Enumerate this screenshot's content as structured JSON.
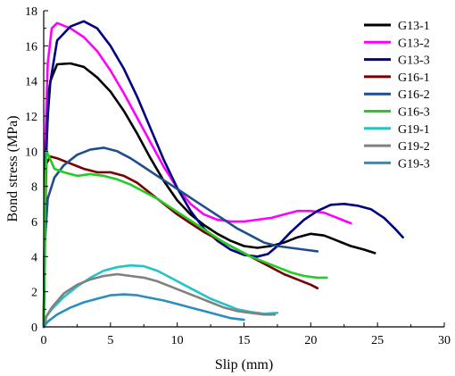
{
  "chart_data": {
    "type": "line",
    "title": "",
    "xlabel": "Slip (mm)",
    "ylabel": "Bond stress (MPa)",
    "xlim": [
      0,
      30
    ],
    "ylim": [
      0,
      18
    ],
    "xticks": [
      "0",
      "5",
      "10",
      "15",
      "20",
      "25",
      "30"
    ],
    "yticks": [
      "0",
      "2",
      "4",
      "6",
      "8",
      "10",
      "12",
      "14",
      "16",
      "18"
    ],
    "legend_position": "top-right",
    "grid": false,
    "series": [
      {
        "name": "G13-1",
        "color": "#000000",
        "points": [
          [
            0,
            0
          ],
          [
            0.1,
            8
          ],
          [
            0.3,
            12
          ],
          [
            0.5,
            14
          ],
          [
            1,
            14.95
          ],
          [
            2,
            15
          ],
          [
            3,
            14.8
          ],
          [
            4,
            14.2
          ],
          [
            5,
            13.4
          ],
          [
            6,
            12.3
          ],
          [
            7,
            11
          ],
          [
            8,
            9.6
          ],
          [
            9,
            8.3
          ],
          [
            10,
            7.2
          ],
          [
            11,
            6.4
          ],
          [
            12,
            5.8
          ],
          [
            13,
            5.3
          ],
          [
            14,
            4.9
          ],
          [
            15,
            4.6
          ],
          [
            16,
            4.5
          ],
          [
            17,
            4.6
          ],
          [
            18,
            4.8
          ],
          [
            19,
            5.1
          ],
          [
            20,
            5.3
          ],
          [
            21,
            5.2
          ],
          [
            22,
            4.9
          ],
          [
            23,
            4.6
          ],
          [
            24,
            4.4
          ],
          [
            24.8,
            4.2
          ]
        ]
      },
      {
        "name": "G13-2",
        "color": "#ff00ff",
        "points": [
          [
            0,
            0
          ],
          [
            0.1,
            10
          ],
          [
            0.3,
            15
          ],
          [
            0.6,
            17
          ],
          [
            1,
            17.3
          ],
          [
            2,
            17
          ],
          [
            3,
            16.5
          ],
          [
            4,
            15.7
          ],
          [
            5,
            14.6
          ],
          [
            6,
            13.3
          ],
          [
            7,
            11.9
          ],
          [
            8,
            10.5
          ],
          [
            9,
            9.1
          ],
          [
            10,
            7.9
          ],
          [
            11,
            7
          ],
          [
            12,
            6.4
          ],
          [
            13,
            6.1
          ],
          [
            14,
            6
          ],
          [
            15,
            6
          ],
          [
            16,
            6.1
          ],
          [
            17,
            6.2
          ],
          [
            18,
            6.4
          ],
          [
            19,
            6.6
          ],
          [
            20,
            6.6
          ],
          [
            21,
            6.5
          ],
          [
            22,
            6.2
          ],
          [
            23,
            5.9
          ]
        ]
      },
      {
        "name": "G13-3",
        "color": "#000080",
        "points": [
          [
            0,
            0
          ],
          [
            0.1,
            9
          ],
          [
            0.4,
            13.5
          ],
          [
            1,
            16.3
          ],
          [
            2,
            17.1
          ],
          [
            3,
            17.4
          ],
          [
            4,
            17
          ],
          [
            5,
            16
          ],
          [
            6,
            14.7
          ],
          [
            7,
            13.1
          ],
          [
            8,
            11.3
          ],
          [
            9,
            9.5
          ],
          [
            10,
            7.9
          ],
          [
            11,
            6.6
          ],
          [
            12,
            5.6
          ],
          [
            13,
            4.9
          ],
          [
            14,
            4.4
          ],
          [
            15,
            4.1
          ],
          [
            16,
            4
          ],
          [
            16.8,
            4.15
          ],
          [
            17.5,
            4.6
          ],
          [
            18.5,
            5.4
          ],
          [
            19.5,
            6.1
          ],
          [
            20.5,
            6.6
          ],
          [
            21.5,
            6.95
          ],
          [
            22.5,
            7
          ],
          [
            23.5,
            6.9
          ],
          [
            24.5,
            6.7
          ],
          [
            25.5,
            6.2
          ],
          [
            26.3,
            5.6
          ],
          [
            26.9,
            5.1
          ]
        ]
      },
      {
        "name": "G16-1",
        "color": "#7a0000",
        "points": [
          [
            0,
            0
          ],
          [
            0.1,
            6
          ],
          [
            0.2,
            9.3
          ],
          [
            0.5,
            9.7
          ],
          [
            1,
            9.6
          ],
          [
            2,
            9.3
          ],
          [
            3,
            9
          ],
          [
            4,
            8.8
          ],
          [
            5,
            8.8
          ],
          [
            6,
            8.6
          ],
          [
            7,
            8.2
          ],
          [
            8,
            7.6
          ],
          [
            9,
            7
          ],
          [
            10,
            6.4
          ],
          [
            11,
            5.9
          ],
          [
            12,
            5.4
          ],
          [
            13,
            5
          ],
          [
            14,
            4.6
          ],
          [
            15,
            4.2
          ],
          [
            16,
            3.8
          ],
          [
            17,
            3.4
          ],
          [
            18,
            3
          ],
          [
            19,
            2.7
          ],
          [
            20,
            2.4
          ],
          [
            20.5,
            2.2
          ]
        ]
      },
      {
        "name": "G16-2",
        "color": "#1f4e8c",
        "points": [
          [
            0,
            0
          ],
          [
            0.1,
            5
          ],
          [
            0.3,
            7.3
          ],
          [
            0.8,
            8.5
          ],
          [
            1.5,
            9.2
          ],
          [
            2.5,
            9.8
          ],
          [
            3.5,
            10.1
          ],
          [
            4.5,
            10.2
          ],
          [
            5.5,
            10
          ],
          [
            6.5,
            9.6
          ],
          [
            7.5,
            9.1
          ],
          [
            8.5,
            8.6
          ],
          [
            9.5,
            8.1
          ],
          [
            10.5,
            7.6
          ],
          [
            11.5,
            7.1
          ],
          [
            12.5,
            6.6
          ],
          [
            13.5,
            6.1
          ],
          [
            14.5,
            5.6
          ],
          [
            15.5,
            5.2
          ],
          [
            16.5,
            4.8
          ],
          [
            17.5,
            4.6
          ],
          [
            18.5,
            4.5
          ],
          [
            19.5,
            4.4
          ],
          [
            20.5,
            4.3
          ]
        ]
      },
      {
        "name": "G16-3",
        "color": "#22cc22",
        "points": [
          [
            0,
            0
          ],
          [
            0.1,
            7
          ],
          [
            0.2,
            10
          ],
          [
            0.4,
            9.7
          ],
          [
            0.8,
            9
          ],
          [
            1.5,
            8.8
          ],
          [
            2.5,
            8.6
          ],
          [
            3.5,
            8.7
          ],
          [
            4.5,
            8.6
          ],
          [
            5.5,
            8.4
          ],
          [
            6.5,
            8.1
          ],
          [
            7.5,
            7.7
          ],
          [
            8.5,
            7.3
          ],
          [
            9.5,
            6.8
          ],
          [
            10.5,
            6.3
          ],
          [
            11.5,
            5.8
          ],
          [
            12.5,
            5.3
          ],
          [
            13.5,
            4.8
          ],
          [
            14.5,
            4.4
          ],
          [
            15.5,
            4
          ],
          [
            16.5,
            3.7
          ],
          [
            17.5,
            3.4
          ],
          [
            18.5,
            3.1
          ],
          [
            19.5,
            2.9
          ],
          [
            20.5,
            2.8
          ],
          [
            21.2,
            2.8
          ]
        ]
      },
      {
        "name": "G19-1",
        "color": "#22c4c8",
        "points": [
          [
            0,
            0
          ],
          [
            0.2,
            0.6
          ],
          [
            0.6,
            1
          ],
          [
            1.5,
            1.7
          ],
          [
            2.5,
            2.3
          ],
          [
            3.5,
            2.8
          ],
          [
            4.5,
            3.2
          ],
          [
            5.5,
            3.4
          ],
          [
            6.5,
            3.5
          ],
          [
            7.5,
            3.45
          ],
          [
            8.5,
            3.2
          ],
          [
            9.5,
            2.8
          ],
          [
            10.5,
            2.4
          ],
          [
            11.5,
            2
          ],
          [
            12.5,
            1.6
          ],
          [
            13.5,
            1.3
          ],
          [
            14.5,
            1
          ],
          [
            15.5,
            0.85
          ],
          [
            16.5,
            0.75
          ],
          [
            17.5,
            0.8
          ]
        ]
      },
      {
        "name": "G19-2",
        "color": "#808080",
        "points": [
          [
            0,
            0
          ],
          [
            0.2,
            0.6
          ],
          [
            0.6,
            1.1
          ],
          [
            1.5,
            1.9
          ],
          [
            2.5,
            2.4
          ],
          [
            3.5,
            2.7
          ],
          [
            4.5,
            2.9
          ],
          [
            5.5,
            3
          ],
          [
            6.5,
            2.9
          ],
          [
            7.5,
            2.8
          ],
          [
            8.5,
            2.6
          ],
          [
            9.5,
            2.3
          ],
          [
            10.5,
            2
          ],
          [
            11.5,
            1.7
          ],
          [
            12.5,
            1.4
          ],
          [
            13.5,
            1.1
          ],
          [
            14.5,
            0.9
          ],
          [
            15.5,
            0.8
          ],
          [
            16.5,
            0.7
          ],
          [
            17.3,
            0.7
          ]
        ]
      },
      {
        "name": "G19-3",
        "color": "#2a8fc0",
        "points": [
          [
            0,
            0
          ],
          [
            0.3,
            0.3
          ],
          [
            1,
            0.7
          ],
          [
            2,
            1.1
          ],
          [
            3,
            1.4
          ],
          [
            4,
            1.6
          ],
          [
            5,
            1.8
          ],
          [
            6,
            1.85
          ],
          [
            7,
            1.8
          ],
          [
            8,
            1.65
          ],
          [
            9,
            1.5
          ],
          [
            10,
            1.3
          ],
          [
            11,
            1.1
          ],
          [
            12,
            0.9
          ],
          [
            13,
            0.7
          ],
          [
            14,
            0.5
          ],
          [
            15,
            0.4
          ]
        ]
      }
    ]
  }
}
